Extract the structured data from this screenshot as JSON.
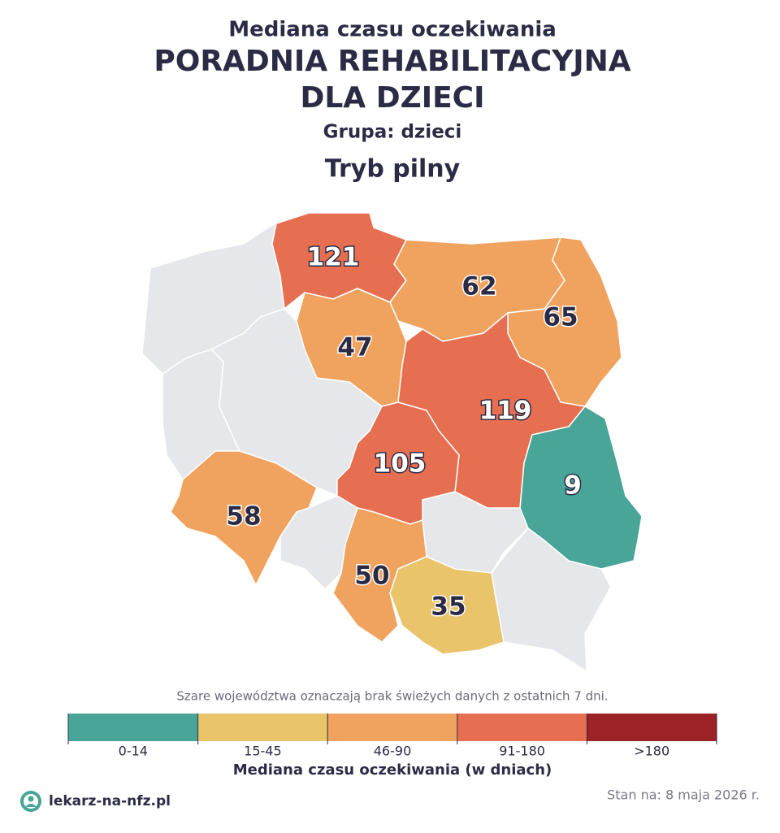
{
  "header": {
    "subtitle": "Mediana czasu oczekiwania",
    "title_lines": [
      "PORADNIA REHABILITACYJNA",
      "DLA DZIECI"
    ],
    "group": "Grupa: dzieci",
    "mode": "Tryb pilny"
  },
  "map": {
    "regions": [
      {
        "value": 121,
        "color": "#e76f51"
      },
      {
        "value": 62,
        "color": "#f0a35e"
      },
      {
        "value": 65,
        "color": "#f0a35e"
      },
      {
        "value": 47,
        "color": "#f0a35e"
      },
      {
        "value": 119,
        "color": "#e76f51"
      },
      {
        "value": 105,
        "color": "#e76f51"
      },
      {
        "value": 9,
        "color": "#48a597"
      },
      {
        "value": 58,
        "color": "#f0a35e"
      },
      {
        "value": 50,
        "color": "#f0a35e"
      },
      {
        "value": 35,
        "color": "#e9c46a"
      }
    ]
  },
  "note": "Szare województwa oznaczają brak świeżych danych z ostatnich 7 dni.",
  "legend": {
    "title": "Mediana czasu oczekiwania (w dniach)",
    "bins": [
      {
        "label": "0-14",
        "color": "#48a597"
      },
      {
        "label": "15-45",
        "color": "#e9c46a"
      },
      {
        "label": "46-90",
        "color": "#f0a35e"
      },
      {
        "label": "91-180",
        "color": "#e76f51"
      },
      {
        "label": ">180",
        "color": "#9b2226"
      }
    ]
  },
  "footer": {
    "brand": "lekarz-na-nfz.pl",
    "date": "Stan na: 8 maja 2026 r."
  }
}
